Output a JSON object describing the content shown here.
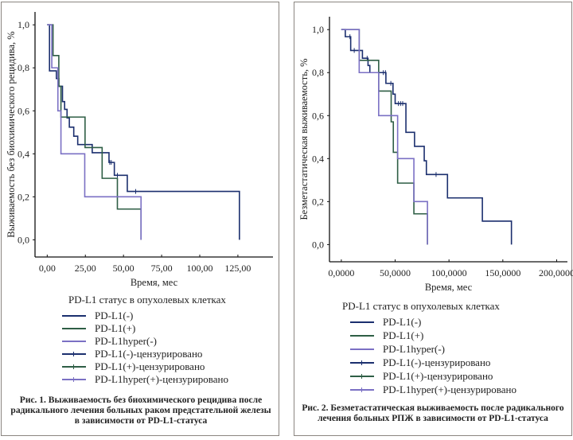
{
  "chart_data": [
    {
      "type": "line",
      "subtype": "kaplan-meier-step",
      "title": "",
      "xlabel": "Время, мес",
      "ylabel": "Выживаемость без биохимического рецидива, %",
      "xlim": [
        -8,
        148
      ],
      "ylim": [
        -0.08,
        1.06
      ],
      "xticks": [
        0,
        25,
        50,
        75,
        100,
        125
      ],
      "xtick_labels": [
        "0,00",
        "25,00",
        "50,00",
        "75,00",
        "100,00",
        "125,00"
      ],
      "yticks": [
        0,
        0.2,
        0.4,
        0.6,
        0.8,
        1.0
      ],
      "ytick_labels": [
        "0,0",
        "0,2",
        "0,4",
        "0,6",
        "0,8",
        "1,0"
      ],
      "grid": false,
      "legend_position": "below",
      "legend_title": "PD-L1 статус в опухолевых клетках",
      "legend": [
        "PD-L1(-)",
        "PD-L1(+)",
        "PD-L1hyper(-)",
        "PD-L1(-)-цензурировано",
        "PD-L1(+)-цензурировано",
        "PD-L1hyper(+)-цензурировано"
      ],
      "caption": [
        "Рис. 1. Выживаемость без биохимического рецидива после",
        "радикального лечения больных раком предстательной железы",
        "в зависимости от PD-L1-статуса"
      ],
      "series": [
        {
          "name": "PD-L1(-)",
          "color": "#1b2f6e",
          "steps": [
            [
              0,
              1.0
            ],
            [
              1.5,
              0.786
            ],
            [
              6,
              0.75
            ],
            [
              7.6,
              0.714
            ],
            [
              10,
              0.643
            ],
            [
              11.4,
              0.607
            ],
            [
              13,
              0.567
            ],
            [
              14.5,
              0.524
            ],
            [
              17.4,
              0.482
            ],
            [
              20,
              0.443
            ],
            [
              29.5,
              0.405
            ],
            [
              40.5,
              0.36
            ],
            [
              44,
              0.3
            ],
            [
              52.5,
              0.225
            ],
            [
              126,
              0
            ]
          ],
          "end": 126,
          "censored": [
            [
              41,
              0.36
            ],
            [
              42,
              0.36
            ],
            [
              46,
              0.3
            ],
            [
              58,
              0.225
            ]
          ]
        },
        {
          "name": "PD-L1(+)",
          "color": "#2e5e45",
          "steps": [
            [
              0,
              1.0
            ],
            [
              3.8,
              0.857
            ],
            [
              7.6,
              0.714
            ],
            [
              9,
              0.571
            ],
            [
              24.8,
              0.429
            ],
            [
              36,
              0.286
            ],
            [
              46,
              0.143
            ],
            [
              61.5,
              0
            ]
          ],
          "end": 61.5,
          "censored": []
        },
        {
          "name": "PD-L1hyper(-)",
          "color": "#7b70c4",
          "steps": [
            [
              0,
              1.0
            ],
            [
              3,
              0.8
            ],
            [
              7,
              0.6
            ],
            [
              9,
              0.4
            ],
            [
              24.6,
              0.2
            ],
            [
              61.5,
              0
            ]
          ],
          "end": 61.5,
          "censored": []
        }
      ]
    },
    {
      "type": "line",
      "subtype": "kaplan-meier-step",
      "title": "",
      "xlabel": "Время, мес",
      "ylabel": "Безметастатическая выживаемость, %",
      "xlim": [
        -11,
        210
      ],
      "ylim": [
        -0.08,
        1.06
      ],
      "xticks": [
        0,
        50,
        100,
        150,
        200
      ],
      "xtick_labels": [
        "0,0000",
        "50,0000",
        "100,0000",
        "150,0000",
        "200,0000"
      ],
      "yticks": [
        0,
        0.2,
        0.4,
        0.6,
        0.8,
        1.0
      ],
      "ytick_labels": [
        "0,0",
        "0,2",
        "0,4",
        "0,6",
        "0,8",
        "1,0"
      ],
      "grid": false,
      "legend_position": "below",
      "legend_title": "PD-L1 статус в опухолевых клетках",
      "legend": [
        "PD-L1(-)",
        "PD-L1(+)",
        "PD-L1hyper(-)",
        "PD-L1(-)-цензурировано",
        "PD-L1(+)-цензурировано",
        "PD-L1hyper(+)-цензурировано"
      ],
      "caption": [
        "Рис. 2. Безметастатическая выживаемость после радикального",
        "лечения больных РПЖ в зависимости от PD-L1-статуса"
      ],
      "series": [
        {
          "name": "PD-L1(-)",
          "color": "#1b2f6e",
          "steps": [
            [
              0,
              1.0
            ],
            [
              3.7,
              0.967
            ],
            [
              8.7,
              0.903
            ],
            [
              19.6,
              0.867
            ],
            [
              24.8,
              0.833
            ],
            [
              26.5,
              0.8
            ],
            [
              41.4,
              0.75
            ],
            [
              48,
              0.7
            ],
            [
              50,
              0.656
            ],
            [
              60,
              0.522
            ],
            [
              68,
              0.457
            ],
            [
              77,
              0.39
            ],
            [
              79,
              0.326
            ],
            [
              98.6,
              0.217
            ],
            [
              131,
              0.109
            ],
            [
              158,
              0
            ]
          ],
          "end": 158,
          "censored": [
            [
              8,
              0.967
            ],
            [
              12,
              0.903
            ],
            [
              24,
              0.867
            ],
            [
              39,
              0.8
            ],
            [
              41,
              0.8
            ],
            [
              46,
              0.75
            ],
            [
              53,
              0.656
            ],
            [
              55,
              0.656
            ],
            [
              57,
              0.656
            ],
            [
              88,
              0.326
            ]
          ]
        },
        {
          "name": "PD-L1(+)",
          "color": "#2e5e45",
          "steps": [
            [
              0,
              1.0
            ],
            [
              16.6,
              0.857
            ],
            [
              34.7,
              0.714
            ],
            [
              46.3,
              0.571
            ],
            [
              48.3,
              0.429
            ],
            [
              52.3,
              0.286
            ],
            [
              67.4,
              0.143
            ],
            [
              80,
              0
            ]
          ],
          "end": 80,
          "censored": []
        },
        {
          "name": "PD-L1hyper(-)",
          "color": "#7b70c4",
          "steps": [
            [
              0,
              1.0
            ],
            [
              16.6,
              0.8
            ],
            [
              34.7,
              0.6
            ],
            [
              52.3,
              0.4
            ],
            [
              67.4,
              0.2
            ],
            [
              80,
              0
            ]
          ],
          "end": 80,
          "censored": []
        }
      ]
    }
  ]
}
